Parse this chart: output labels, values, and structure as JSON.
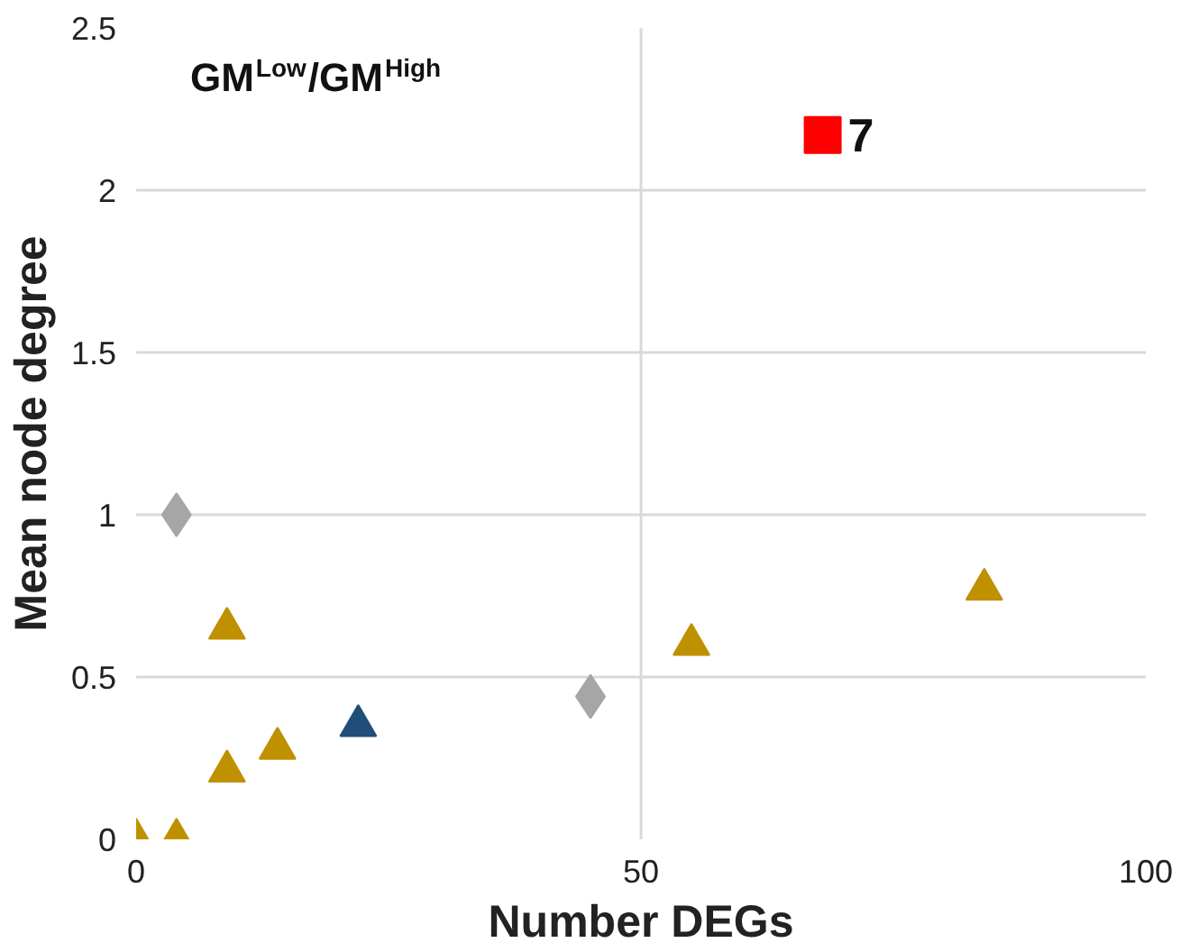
{
  "chart_data": {
    "type": "scatter",
    "xlabel": "Number DEGs",
    "ylabel": "Mean node degree",
    "xlim": [
      0,
      100
    ],
    "ylim": [
      0,
      2.5
    ],
    "xticks": [
      0,
      50,
      100
    ],
    "yticks": [
      0,
      0.5,
      1,
      1.5,
      2,
      2.5
    ],
    "grid": true,
    "annotations": [
      "GM$^{Low}$/GM$^{High}$",
      {
        "text": "7",
        "x": 68,
        "y": 2.17
      }
    ],
    "series": [
      {
        "color": "#bf9000",
        "marker": "triangle",
        "x": [
          0,
          4,
          9,
          9,
          14,
          55,
          84
        ],
        "values": [
          0,
          0,
          0.65,
          0.21,
          0.28,
          0.6,
          0.77
        ]
      },
      {
        "color": "#1f4e79",
        "marker": "triangle",
        "x": [
          22
        ],
        "values": [
          0.35
        ]
      },
      {
        "color": "#a6a6a6",
        "marker": "diamond",
        "x": [
          4,
          45
        ],
        "values": [
          1.0,
          0.44
        ]
      },
      {
        "color": "#ff0000",
        "marker": "square",
        "x": [
          68
        ],
        "values": [
          2.17
        ]
      }
    ]
  }
}
